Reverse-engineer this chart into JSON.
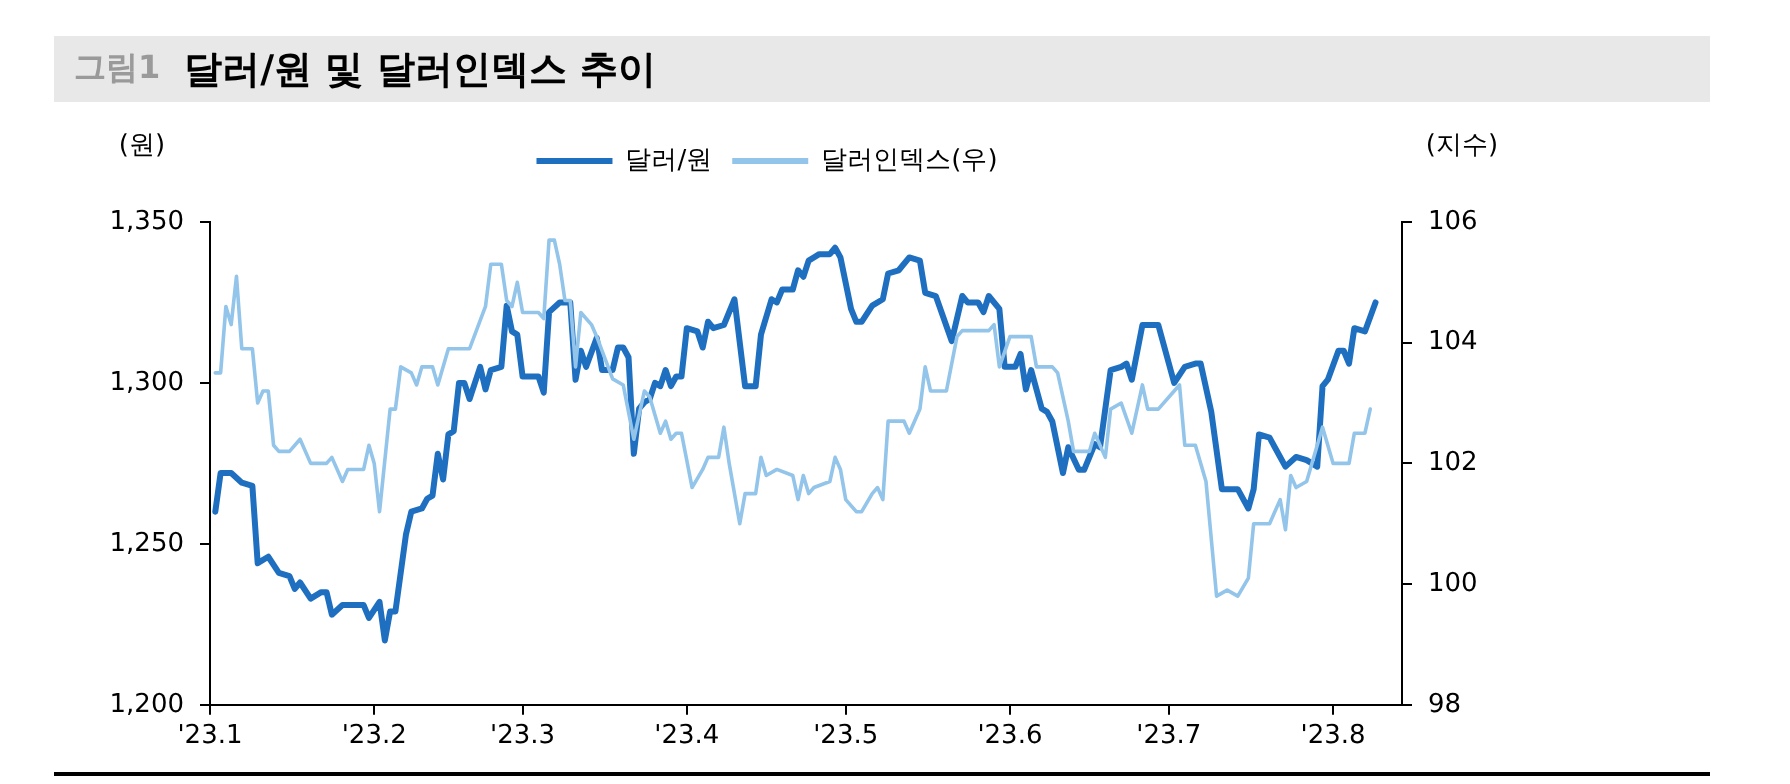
{
  "chart_data": {
    "type": "line",
    "title": "그림1 달러/원 및 달러인덱스 추이",
    "ylabel": "(원)",
    "y2label": "(지수)",
    "xlim": [
      "2023-01-01",
      "2023-08-14"
    ],
    "xticks": [
      {
        "value": "2023-01-01",
        "label": "'23.1"
      },
      {
        "value": "2023-02-01",
        "label": "'23.2"
      },
      {
        "value": "2023-03-01",
        "label": "'23.3"
      },
      {
        "value": "2023-04-01",
        "label": "'23.4"
      },
      {
        "value": "2023-05-01",
        "label": "'23.5"
      },
      {
        "value": "2023-06-01",
        "label": "'23.6"
      },
      {
        "value": "2023-07-01",
        "label": "'23.7"
      },
      {
        "value": "2023-08-01",
        "label": "'23.8"
      }
    ],
    "ylim": [
      1200,
      1350
    ],
    "yticks": [
      {
        "value": 1200,
        "label": "1,200"
      },
      {
        "value": 1250,
        "label": "1,250"
      },
      {
        "value": 1300,
        "label": "1,300"
      },
      {
        "value": 1350,
        "label": "1,350"
      }
    ],
    "y2lim": [
      98,
      106
    ],
    "y2ticks": [
      98,
      100,
      102,
      104,
      106
    ],
    "legend": "top",
    "grid": false,
    "marker": "none",
    "line_style": "solid",
    "series": [
      {
        "name": "달러/원",
        "color": "#1f6fc0",
        "x": [
          "2023-01-02",
          "2023-01-03",
          "2023-01-05",
          "2023-01-07",
          "2023-01-09",
          "2023-01-10",
          "2023-01-12",
          "2023-01-14",
          "2023-01-16",
          "2023-01-17",
          "2023-01-18",
          "2023-01-20",
          "2023-01-22",
          "2023-01-23",
          "2023-01-24",
          "2023-01-26",
          "2023-01-30",
          "2023-01-31",
          "2023-02-02",
          "2023-02-03",
          "2023-02-04",
          "2023-02-05",
          "2023-02-07",
          "2023-02-08",
          "2023-02-10",
          "2023-02-11",
          "2023-02-12",
          "2023-02-13",
          "2023-02-14",
          "2023-02-15",
          "2023-02-16",
          "2023-02-17",
          "2023-02-18",
          "2023-02-19",
          "2023-02-20",
          "2023-02-21",
          "2023-02-22",
          "2023-02-23",
          "2023-02-25",
          "2023-02-26",
          "2023-02-27",
          "2023-02-28",
          "2023-03-01",
          "2023-03-04",
          "2023-03-05",
          "2023-03-06",
          "2023-03-08",
          "2023-03-10",
          "2023-03-11",
          "2023-03-12",
          "2023-03-13",
          "2023-03-15",
          "2023-03-16",
          "2023-03-18",
          "2023-03-19",
          "2023-03-20",
          "2023-03-21",
          "2023-03-22",
          "2023-03-23",
          "2023-03-24",
          "2023-03-25",
          "2023-03-26",
          "2023-03-27",
          "2023-03-28",
          "2023-03-29",
          "2023-03-30",
          "2023-03-31",
          "2023-04-01",
          "2023-04-03",
          "2023-04-04",
          "2023-04-05",
          "2023-04-06",
          "2023-04-08",
          "2023-04-10",
          "2023-04-12",
          "2023-04-14",
          "2023-04-15",
          "2023-04-17",
          "2023-04-18",
          "2023-04-19",
          "2023-04-21",
          "2023-04-22",
          "2023-04-23",
          "2023-04-24",
          "2023-04-26",
          "2023-04-28",
          "2023-04-29",
          "2023-04-30",
          "2023-05-02",
          "2023-05-03",
          "2023-05-04",
          "2023-05-06",
          "2023-05-08",
          "2023-05-09",
          "2023-05-11",
          "2023-05-13",
          "2023-05-15",
          "2023-05-16",
          "2023-05-18",
          "2023-05-21",
          "2023-05-23",
          "2023-05-24",
          "2023-05-26",
          "2023-05-27",
          "2023-05-28",
          "2023-05-30",
          "2023-05-31",
          "2023-06-02",
          "2023-06-03",
          "2023-06-04",
          "2023-06-05",
          "2023-06-07",
          "2023-06-08",
          "2023-06-09",
          "2023-06-11",
          "2023-06-12",
          "2023-06-14",
          "2023-06-15",
          "2023-06-17",
          "2023-06-18",
          "2023-06-19",
          "2023-06-20",
          "2023-06-22",
          "2023-06-23",
          "2023-06-24",
          "2023-06-26",
          "2023-06-29",
          "2023-07-02",
          "2023-07-04",
          "2023-07-06",
          "2023-07-07",
          "2023-07-09",
          "2023-07-11",
          "2023-07-14",
          "2023-07-16",
          "2023-07-17",
          "2023-07-18",
          "2023-07-20",
          "2023-07-22",
          "2023-07-23",
          "2023-07-25",
          "2023-07-27",
          "2023-07-29",
          "2023-07-30",
          "2023-07-31",
          "2023-08-02",
          "2023-08-03",
          "2023-08-04",
          "2023-08-05",
          "2023-08-07",
          "2023-08-09"
        ],
        "values": [
          1260,
          1272,
          1272,
          1269,
          1268,
          1244,
          1246,
          1241,
          1240,
          1236,
          1238,
          1233,
          1235,
          1235,
          1228,
          1231,
          1231,
          1227,
          1232,
          1220,
          1229,
          1229,
          1253,
          1260,
          1261,
          1264,
          1265,
          1278,
          1270,
          1284,
          1285,
          1300,
          1300,
          1295,
          1300,
          1305,
          1298,
          1304,
          1305,
          1324,
          1316,
          1315,
          1302,
          1302,
          1297,
          1322,
          1325,
          1325,
          1301,
          1310,
          1305,
          1314,
          1304,
          1304,
          1311,
          1311,
          1308,
          1278,
          1292,
          1294,
          1295,
          1300,
          1299,
          1304,
          1299,
          1302,
          1302,
          1317,
          1316,
          1311,
          1319,
          1317,
          1318,
          1326,
          1299,
          1299,
          1315,
          1326,
          1325,
          1329,
          1329,
          1335,
          1333,
          1338,
          1340,
          1340,
          1342,
          1339,
          1323,
          1319,
          1319,
          1324,
          1326,
          1334,
          1335,
          1339,
          1338,
          1328,
          1327,
          1313,
          1327,
          1325,
          1325,
          1322,
          1327,
          1323,
          1305,
          1305,
          1309,
          1298,
          1304,
          1292,
          1291,
          1288,
          1272,
          1280,
          1273,
          1273,
          1281,
          1280,
          1292,
          1304,
          1305,
          1306,
          1301,
          1318,
          1318,
          1300,
          1305,
          1306,
          1306,
          1291,
          1267,
          1267,
          1261,
          1267,
          1284,
          1283,
          1277,
          1274,
          1277,
          1276,
          1274,
          1299,
          1301,
          1310,
          1310,
          1306,
          1317,
          1316,
          1325
        ]
      },
      {
        "name": "달러인덱스(우)",
        "color": "#93c4ea",
        "axis": "y2",
        "x": [
          "2023-01-02",
          "2023-01-03",
          "2023-01-04",
          "2023-01-05",
          "2023-01-06",
          "2023-01-07",
          "2023-01-09",
          "2023-01-10",
          "2023-01-11",
          "2023-01-12",
          "2023-01-13",
          "2023-01-14",
          "2023-01-16",
          "2023-01-18",
          "2023-01-20",
          "2023-01-23",
          "2023-01-24",
          "2023-01-26",
          "2023-01-27",
          "2023-01-30",
          "2023-01-31",
          "2023-02-01",
          "2023-02-02",
          "2023-02-04",
          "2023-02-05",
          "2023-02-06",
          "2023-02-08",
          "2023-02-09",
          "2023-02-10",
          "2023-02-12",
          "2023-02-13",
          "2023-02-15",
          "2023-02-19",
          "2023-02-22",
          "2023-02-23",
          "2023-02-25",
          "2023-02-26",
          "2023-02-27",
          "2023-02-28",
          "2023-03-01",
          "2023-03-04",
          "2023-03-05",
          "2023-03-06",
          "2023-03-07",
          "2023-03-08",
          "2023-03-09",
          "2023-03-10",
          "2023-03-11",
          "2023-03-12",
          "2023-03-14",
          "2023-03-15",
          "2023-03-18",
          "2023-03-20",
          "2023-03-22",
          "2023-03-24",
          "2023-03-25",
          "2023-03-27",
          "2023-03-28",
          "2023-03-29",
          "2023-03-30",
          "2023-03-31",
          "2023-04-02",
          "2023-04-04",
          "2023-04-05",
          "2023-04-07",
          "2023-04-08",
          "2023-04-09",
          "2023-04-11",
          "2023-04-12",
          "2023-04-14",
          "2023-04-15",
          "2023-04-16",
          "2023-04-18",
          "2023-04-21",
          "2023-04-22",
          "2023-04-23",
          "2023-04-24",
          "2023-04-25",
          "2023-04-28",
          "2023-04-29",
          "2023-04-30",
          "2023-05-01",
          "2023-05-03",
          "2023-05-04",
          "2023-05-06",
          "2023-05-07",
          "2023-05-08",
          "2023-05-09",
          "2023-05-12",
          "2023-05-13",
          "2023-05-15",
          "2023-05-16",
          "2023-05-17",
          "2023-05-20",
          "2023-05-22",
          "2023-05-23",
          "2023-05-28",
          "2023-05-29",
          "2023-05-30",
          "2023-06-01",
          "2023-06-03",
          "2023-06-05",
          "2023-06-06",
          "2023-06-07",
          "2023-06-09",
          "2023-06-10",
          "2023-06-12",
          "2023-06-13",
          "2023-06-14",
          "2023-06-16",
          "2023-06-17",
          "2023-06-19",
          "2023-06-20",
          "2023-06-22",
          "2023-06-24",
          "2023-06-26",
          "2023-06-27",
          "2023-06-29",
          "2023-07-02",
          "2023-07-03",
          "2023-07-04",
          "2023-07-06",
          "2023-07-08",
          "2023-07-10",
          "2023-07-12",
          "2023-07-14",
          "2023-07-16",
          "2023-07-17",
          "2023-07-19",
          "2023-07-20",
          "2023-07-22",
          "2023-07-23",
          "2023-07-24",
          "2023-07-25",
          "2023-07-27",
          "2023-07-30",
          "2023-08-01",
          "2023-08-04",
          "2023-08-05",
          "2023-08-07",
          "2023-08-08"
        ],
        "values": [
          103.5,
          103.5,
          104.6,
          104.3,
          105.1,
          103.9,
          103.9,
          103.0,
          103.2,
          103.2,
          102.3,
          102.2,
          102.2,
          102.4,
          102.0,
          102.0,
          102.1,
          101.7,
          101.9,
          101.9,
          102.3,
          102.0,
          101.2,
          102.9,
          102.9,
          103.6,
          103.5,
          103.3,
          103.6,
          103.6,
          103.3,
          103.9,
          103.9,
          104.6,
          105.3,
          105.3,
          104.7,
          104.6,
          105.0,
          104.5,
          104.5,
          104.4,
          105.7,
          105.7,
          105.3,
          104.7,
          104.7,
          103.6,
          104.5,
          104.3,
          104.1,
          103.4,
          103.3,
          102.4,
          103.2,
          103.1,
          102.5,
          102.7,
          102.4,
          102.5,
          102.5,
          101.6,
          101.9,
          102.1,
          102.1,
          102.6,
          102.0,
          101.0,
          101.5,
          101.5,
          102.1,
          101.8,
          101.9,
          101.8,
          101.4,
          101.8,
          101.5,
          101.6,
          101.7,
          102.1,
          101.9,
          101.4,
          101.2,
          101.2,
          101.5,
          101.6,
          101.4,
          102.7,
          102.7,
          102.5,
          102.9,
          103.6,
          103.2,
          103.2,
          104.1,
          104.2,
          104.2,
          104.3,
          103.6,
          104.1,
          104.1,
          104.1,
          103.6,
          103.6,
          103.6,
          103.5,
          102.7,
          102.2,
          102.2,
          102.2,
          102.5,
          102.1,
          102.9,
          103.0,
          102.5,
          103.3,
          102.9,
          102.9,
          103.2,
          103.3,
          102.3,
          102.3,
          101.7,
          99.8,
          99.9,
          99.8,
          100.1,
          101.0,
          101.0,
          101.0,
          101.4,
          100.9,
          101.8,
          101.6,
          101.7,
          102.6,
          102.0,
          102.0,
          102.5,
          102.5,
          102.9
        ]
      }
    ]
  }
}
